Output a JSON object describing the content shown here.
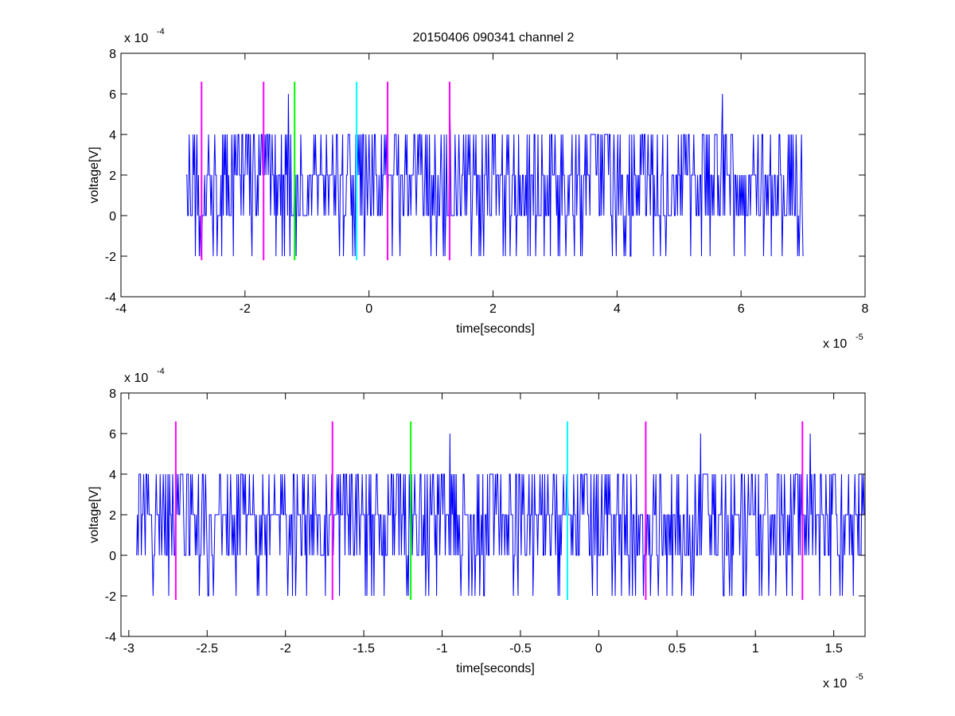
{
  "figure_title": "20150406 090341 channel 2",
  "colors": {
    "signal": "#0000ff",
    "magenta": "#ff00ff",
    "green": "#00ff00",
    "cyan": "#00ffff",
    "axes": "#000000"
  },
  "chart_data": [
    {
      "type": "line",
      "title": "20150406 090341 channel 2",
      "xlabel": "time[seconds]",
      "ylabel": "voltage[V]",
      "xlim": [
        -4e-05,
        8e-05
      ],
      "ylim": [
        -0.0004,
        0.0008
      ],
      "x_ticks": [
        -4,
        -2,
        0,
        2,
        4,
        6,
        8
      ],
      "x_tick_labels": [
        "-4",
        "-2",
        "0",
        "2",
        "4",
        "6",
        "8"
      ],
      "y_ticks": [
        -4,
        -2,
        0,
        2,
        4,
        6,
        8
      ],
      "y_tick_labels": [
        "-4",
        "-2",
        "0",
        "2",
        "4",
        "6",
        "8"
      ],
      "x_exponent": {
        "base": "x 10",
        "power": "-5"
      },
      "y_exponent": {
        "base": "x 10",
        "power": "-4"
      },
      "grid": false,
      "signal": {
        "x_start": -2.95e-05,
        "x_end": 7e-05,
        "levels": [
          -0.0002,
          0,
          0.0002,
          0.0004,
          0.0006
        ],
        "typical": 0.0002,
        "note_peaks": [
          [
            -1.3e-05,
            0.0006
          ],
          [
            1.3e-05,
            0.0006
          ],
          [
            5.7e-05,
            0.0006
          ]
        ]
      },
      "markers": [
        {
          "x": -2.7e-05,
          "color": "magenta",
          "ymin": -0.00022,
          "ymax": 0.00066
        },
        {
          "x": -1.7e-05,
          "color": "magenta",
          "ymin": -0.00022,
          "ymax": 0.00066
        },
        {
          "x": -1.2e-05,
          "color": "green",
          "ymin": -0.00022,
          "ymax": 0.00066
        },
        {
          "x": -2e-06,
          "color": "cyan",
          "ymin": -0.00022,
          "ymax": 0.00066
        },
        {
          "x": 3e-06,
          "color": "magenta",
          "ymin": -0.00022,
          "ymax": 0.00066
        },
        {
          "x": 1.3e-05,
          "color": "magenta",
          "ymin": -0.00022,
          "ymax": 0.00066
        }
      ]
    },
    {
      "type": "line",
      "title": "",
      "xlabel": "time[seconds]",
      "ylabel": "voltage[V]",
      "xlim": [
        -3.05e-05,
        1.7e-05
      ],
      "ylim": [
        -0.0004,
        0.0008
      ],
      "x_ticks": [
        -3,
        -2.5,
        -2,
        -1.5,
        -1,
        -0.5,
        0,
        0.5,
        1,
        1.5
      ],
      "x_tick_labels": [
        "-3",
        "-2.5",
        "-2",
        "-1.5",
        "-1",
        "-0.5",
        "0",
        "0.5",
        "1",
        "1.5"
      ],
      "y_ticks": [
        -4,
        -2,
        0,
        2,
        4,
        6,
        8
      ],
      "y_tick_labels": [
        "-4",
        "-2",
        "0",
        "2",
        "4",
        "6",
        "8"
      ],
      "x_exponent": {
        "base": "x 10",
        "power": "-5"
      },
      "y_exponent": {
        "base": "x 10",
        "power": "-4"
      },
      "grid": false,
      "signal": {
        "x_start": -2.95e-05,
        "x_end": 1.7e-05,
        "levels": [
          -0.0002,
          0,
          0.0002,
          0.0004,
          0.0006
        ],
        "typical": 0.0002,
        "note_peaks": [
          [
            -9.5e-06,
            0.0006
          ],
          [
            1.35e-05,
            0.0006
          ],
          [
            6.5e-06,
            0.0006
          ]
        ]
      },
      "markers": [
        {
          "x": -2.7e-05,
          "color": "magenta",
          "ymin": -0.00022,
          "ymax": 0.00066
        },
        {
          "x": -1.7e-05,
          "color": "magenta",
          "ymin": -0.00022,
          "ymax": 0.00066
        },
        {
          "x": -1.2e-05,
          "color": "green",
          "ymin": -0.00022,
          "ymax": 0.00066
        },
        {
          "x": -2e-06,
          "color": "cyan",
          "ymin": -0.00022,
          "ymax": 0.00066
        },
        {
          "x": 3e-06,
          "color": "magenta",
          "ymin": -0.00022,
          "ymax": 0.00066
        },
        {
          "x": 1.3e-05,
          "color": "magenta",
          "ymin": -0.00022,
          "ymax": 0.00066
        }
      ]
    }
  ]
}
